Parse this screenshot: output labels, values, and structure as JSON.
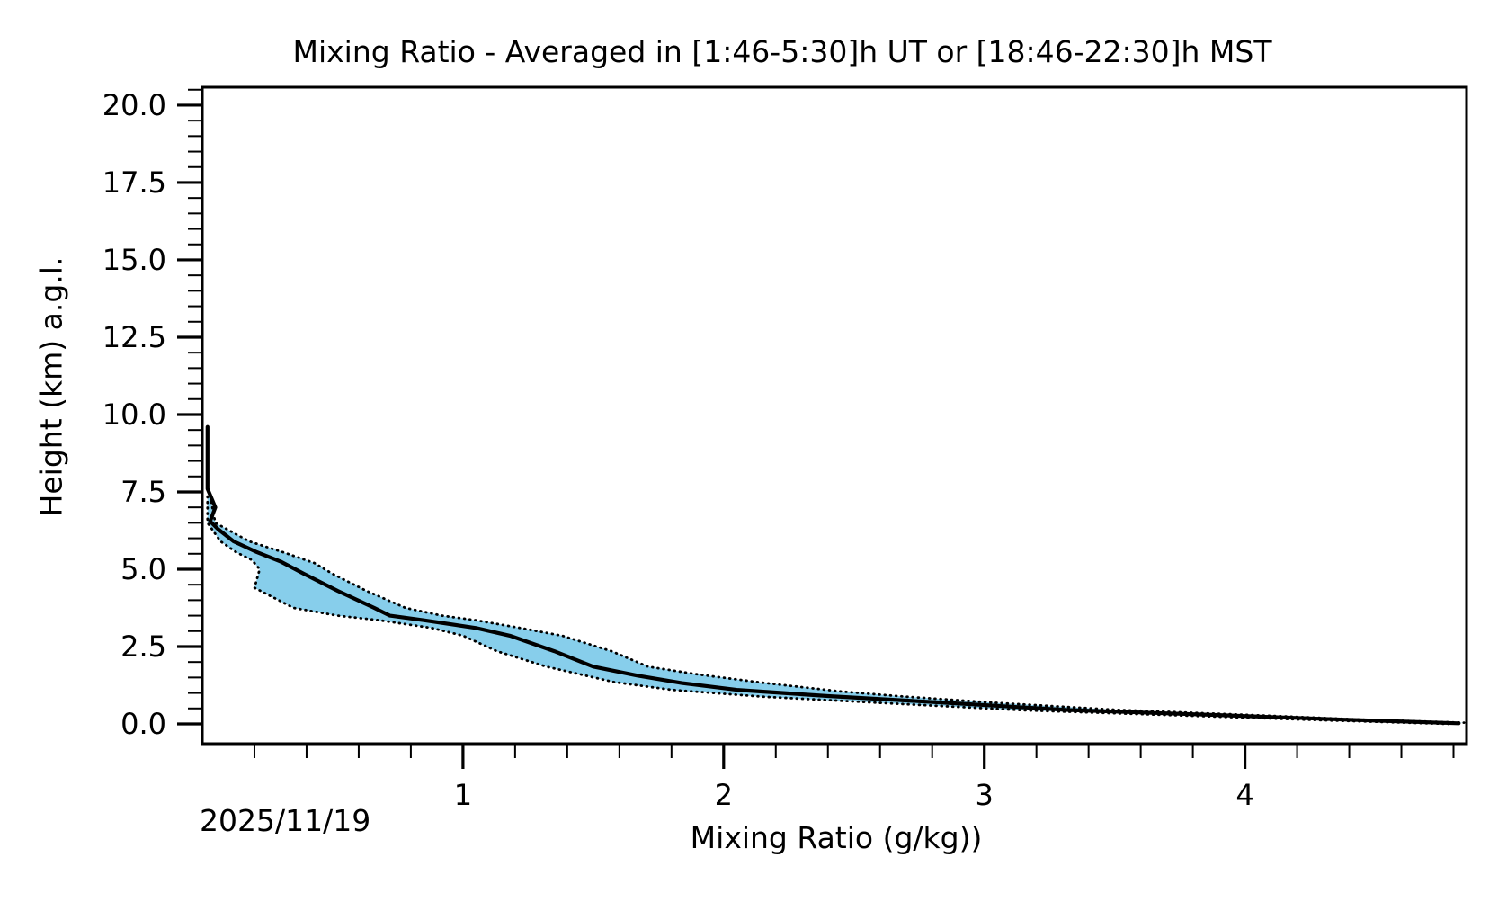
{
  "chart_data": {
    "type": "line",
    "title": "Mixing Ratio - Averaged in [1:46-5:30]h UT or [18:46-22:30]h MST",
    "xlabel": "Mixing Ratio (g/kg))",
    "ylabel": "Height (km) a.g.l.",
    "date_annotation": "2025/11/19",
    "xlim": [
      0,
      4.85
    ],
    "ylim": [
      -0.64,
      20.58
    ],
    "grid": false,
    "legend": "none",
    "xticks_major": [
      1,
      2,
      3,
      4
    ],
    "xtick_labels": [
      "1",
      "2",
      "3",
      "4"
    ],
    "xtick_minor_step": 0.2,
    "yticks_major": [
      0,
      2.5,
      5,
      7.5,
      10,
      12.5,
      15,
      17.5,
      20
    ],
    "ytick_labels": [
      "0.0",
      "2.5",
      "5.0",
      "7.5",
      "10.0",
      "12.5",
      "15.0",
      "17.5",
      "20.0"
    ],
    "ytick_minor_step": 0.5,
    "colors": {
      "mean_line": "#000000",
      "band_fill": "#87ceeb",
      "band_edge": "#000000",
      "axes": "#000000"
    },
    "series": [
      {
        "name": "mean_profile",
        "style": "solid",
        "points_gkg_km": [
          [
            0.02,
            9.6
          ],
          [
            0.02,
            7.6
          ],
          [
            0.05,
            7.0
          ],
          [
            0.03,
            6.55
          ],
          [
            0.06,
            6.3
          ],
          [
            0.12,
            5.9
          ],
          [
            0.21,
            5.55
          ],
          [
            0.3,
            5.25
          ],
          [
            0.39,
            4.85
          ],
          [
            0.52,
            4.3
          ],
          [
            0.66,
            3.75
          ],
          [
            0.72,
            3.5
          ],
          [
            0.85,
            3.35
          ],
          [
            1.05,
            3.1
          ],
          [
            1.18,
            2.85
          ],
          [
            1.35,
            2.35
          ],
          [
            1.5,
            1.85
          ],
          [
            1.67,
            1.56
          ],
          [
            1.84,
            1.32
          ],
          [
            2.05,
            1.1
          ],
          [
            2.4,
            0.9
          ],
          [
            2.86,
            0.68
          ],
          [
            3.32,
            0.45
          ],
          [
            3.92,
            0.28
          ],
          [
            4.38,
            0.14
          ],
          [
            4.82,
            0.02
          ]
        ]
      },
      {
        "name": "band_lower_bound",
        "style": "dotted",
        "points_gkg_km": [
          [
            0.02,
            7.35
          ],
          [
            0.02,
            6.5
          ],
          [
            0.07,
            5.9
          ],
          [
            0.13,
            5.55
          ],
          [
            0.19,
            5.3
          ],
          [
            0.22,
            5.0
          ],
          [
            0.2,
            4.4
          ],
          [
            0.35,
            3.75
          ],
          [
            0.52,
            3.5
          ],
          [
            0.68,
            3.35
          ],
          [
            0.88,
            3.1
          ],
          [
            1.0,
            2.85
          ],
          [
            1.13,
            2.35
          ],
          [
            1.32,
            1.85
          ],
          [
            1.45,
            1.6
          ],
          [
            1.58,
            1.35
          ],
          [
            1.8,
            1.1
          ],
          [
            2.15,
            0.88
          ],
          [
            2.65,
            0.66
          ],
          [
            3.15,
            0.44
          ],
          [
            3.8,
            0.26
          ],
          [
            4.3,
            0.12
          ],
          [
            4.78,
            0.0
          ]
        ]
      },
      {
        "name": "band_upper_bound",
        "style": "dotted",
        "points_gkg_km": [
          [
            0.03,
            7.35
          ],
          [
            0.05,
            6.5
          ],
          [
            0.18,
            5.9
          ],
          [
            0.31,
            5.55
          ],
          [
            0.43,
            5.2
          ],
          [
            0.5,
            4.85
          ],
          [
            0.63,
            4.3
          ],
          [
            0.78,
            3.75
          ],
          [
            0.92,
            3.5
          ],
          [
            1.05,
            3.35
          ],
          [
            1.22,
            3.1
          ],
          [
            1.38,
            2.85
          ],
          [
            1.57,
            2.35
          ],
          [
            1.71,
            1.85
          ],
          [
            1.9,
            1.6
          ],
          [
            2.15,
            1.33
          ],
          [
            2.45,
            1.05
          ],
          [
            2.7,
            0.88
          ],
          [
            3.05,
            0.68
          ],
          [
            3.5,
            0.46
          ],
          [
            4.05,
            0.28
          ],
          [
            4.45,
            0.14
          ],
          [
            4.84,
            0.04
          ]
        ]
      }
    ]
  }
}
